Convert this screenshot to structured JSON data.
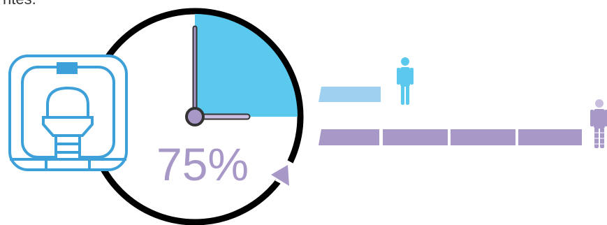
{
  "caption_fragment": "ntes.",
  "percent_label": "75%",
  "clock_fill_fraction": 0.25,
  "bars": {
    "short_segments": 1,
    "long_segments": 4
  },
  "colors": {
    "accent_blue": "#5bc8ee",
    "light_blue": "#9dd1ef",
    "purple": "#a898c8",
    "light_purple": "#c9bde0",
    "ring": "#000000",
    "scanner": "#3ea0d8"
  },
  "icons": [
    "mri-scanner-icon",
    "clock-icon",
    "person-blue-icon",
    "person-purple-icon",
    "arrow-head-icon"
  ]
}
